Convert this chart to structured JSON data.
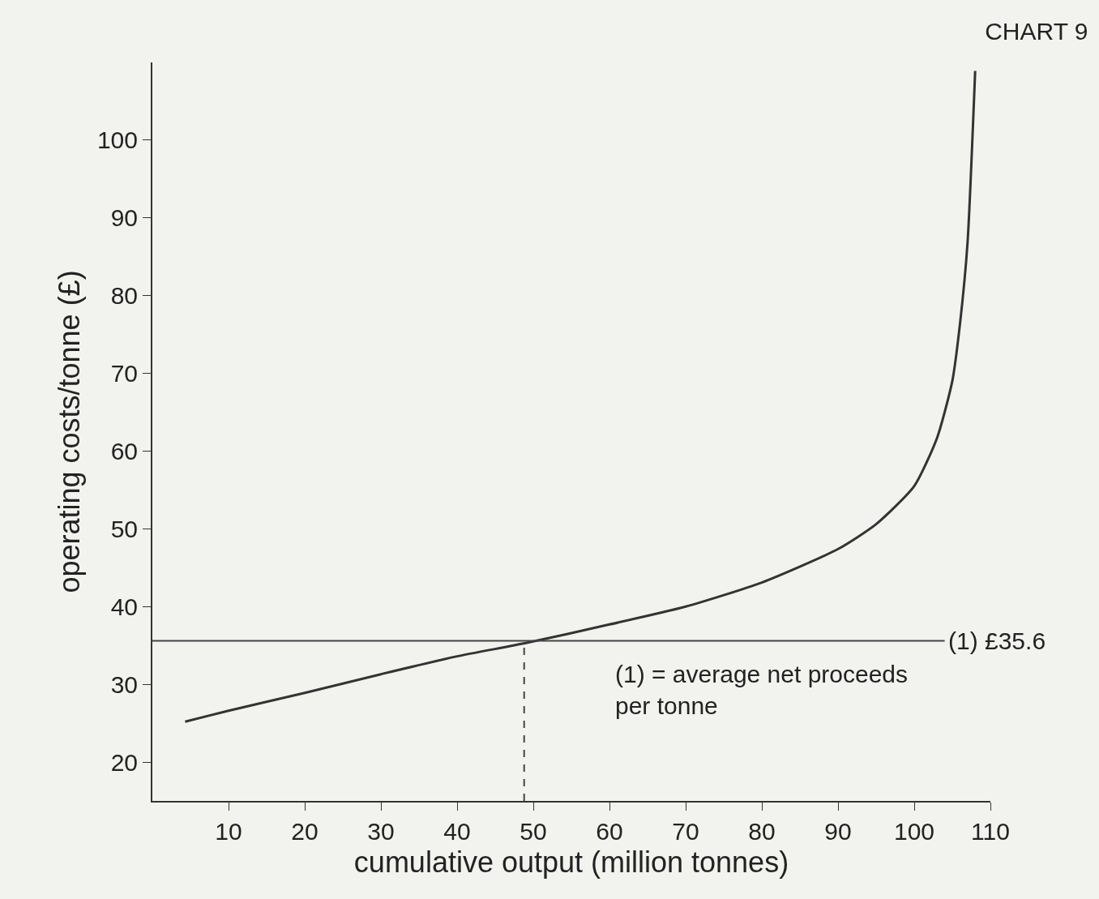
{
  "chart_data": {
    "type": "line",
    "title": "CHART 9",
    "xlabel": "cumulative output (million tonnes)",
    "ylabel": "operating costs/tonne (£)",
    "series": [
      {
        "color": "#333333",
        "x": [
          4.3,
          10,
          20,
          30,
          40,
          49,
          60,
          70,
          80,
          90,
          95,
          100,
          103,
          105,
          106,
          107,
          108
        ],
        "values": [
          25.2,
          26.6,
          28.9,
          31.3,
          33.6,
          35.3,
          37.7,
          40,
          43.1,
          47.4,
          50.6,
          55.5,
          61.7,
          69,
          76.3,
          86.8,
          108.9
        ]
      }
    ],
    "xlim": [
      0,
      110
    ],
    "xticks": [
      10,
      20,
      30,
      40,
      50,
      60,
      70,
      80,
      90,
      100,
      110
    ],
    "ylim": [
      15,
      110
    ],
    "yticks": [
      20,
      30,
      40,
      50,
      60,
      70,
      80,
      90,
      100
    ],
    "ref_lines": [
      {
        "axis": "y",
        "value": 35.6,
        "label": "(1) £35.6",
        "line_style": "solid"
      },
      {
        "axis": "x",
        "value": 48.8,
        "line_style": "dashed"
      }
    ],
    "annotations": [
      "(1) = average net proceeds\nper tonne"
    ],
    "marker": "none",
    "line_style": "solid"
  }
}
